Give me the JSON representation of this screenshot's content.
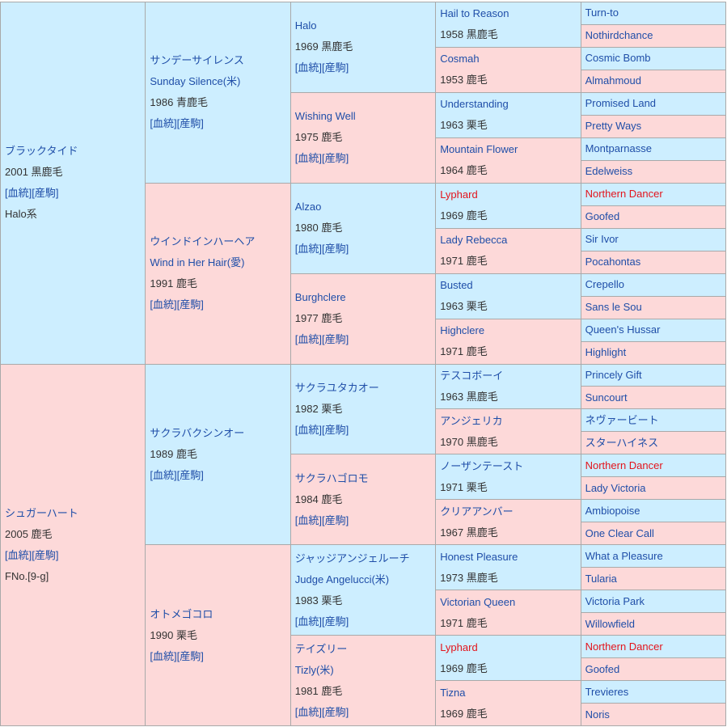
{
  "pedigree": {
    "generations": [
      [
        {
          "name": "ブラックタイド",
          "year": 2001,
          "coat": "黒鹿毛",
          "links": [
            "[血統]",
            "[産駒]"
          ],
          "note": "Halo系"
        },
        {
          "name": "シュガーハート",
          "year": 2005,
          "coat": "鹿毛",
          "links": [
            "[血統]",
            "[産駒]"
          ],
          "note": "FNo.[9-g]"
        }
      ],
      [
        {
          "name": "サンデーサイレンス",
          "name_en": "Sunday Silence(米)",
          "year": 1986,
          "coat": "青鹿毛",
          "links": [
            "[血統]",
            "[産駒]"
          ]
        },
        {
          "name": "ウインドインハーヘア",
          "name_en": "Wind in Her Hair(愛)",
          "year": 1991,
          "coat": "鹿毛",
          "links": [
            "[血統]",
            "[産駒]"
          ]
        },
        {
          "name": "サクラバクシンオー",
          "year": 1989,
          "coat": "鹿毛",
          "links": [
            "[血統]",
            "[産駒]"
          ]
        },
        {
          "name": "オトメゴコロ",
          "year": 1990,
          "coat": "栗毛",
          "links": [
            "[血統]",
            "[産駒]"
          ]
        }
      ],
      [
        {
          "name": "Halo",
          "year": 1969,
          "coat": "黒鹿毛",
          "links": [
            "[血統]",
            "[産駒]"
          ]
        },
        {
          "name": "Wishing Well",
          "year": 1975,
          "coat": "鹿毛",
          "links": [
            "[血統]",
            "[産駒]"
          ]
        },
        {
          "name": "Alzao",
          "year": 1980,
          "coat": "鹿毛",
          "links": [
            "[血統]",
            "[産駒]"
          ]
        },
        {
          "name": "Burghclere",
          "year": 1977,
          "coat": "鹿毛",
          "links": [
            "[血統]",
            "[産駒]"
          ]
        },
        {
          "name": "サクラユタカオー",
          "year": 1982,
          "coat": "栗毛",
          "links": [
            "[血統]",
            "[産駒]"
          ]
        },
        {
          "name": "サクラハゴロモ",
          "year": 1984,
          "coat": "鹿毛",
          "links": [
            "[血統]",
            "[産駒]"
          ]
        },
        {
          "name": "ジャッジアンジェルーチ",
          "name_en": "Judge Angelucci(米)",
          "year": 1983,
          "coat": "栗毛",
          "links": [
            "[血統]",
            "[産駒]"
          ]
        },
        {
          "name": "テイズリー",
          "name_en": "Tizly(米)",
          "year": 1981,
          "coat": "鹿毛",
          "links": [
            "[血統]",
            "[産駒]"
          ]
        }
      ],
      [
        {
          "name": "Hail to Reason",
          "year": 1958,
          "coat": "黒鹿毛"
        },
        {
          "name": "Cosmah",
          "year": 1953,
          "coat": "鹿毛"
        },
        {
          "name": "Understanding",
          "year": 1963,
          "coat": "栗毛"
        },
        {
          "name": "Mountain Flower",
          "year": 1964,
          "coat": "鹿毛"
        },
        {
          "name": "Lyphard",
          "year": 1969,
          "coat": "鹿毛",
          "highlight": true
        },
        {
          "name": "Lady Rebecca",
          "year": 1971,
          "coat": "鹿毛"
        },
        {
          "name": "Busted",
          "year": 1963,
          "coat": "栗毛"
        },
        {
          "name": "Highclere",
          "year": 1971,
          "coat": "鹿毛"
        },
        {
          "name": "テスコボーイ",
          "year": 1963,
          "coat": "黒鹿毛"
        },
        {
          "name": "アンジェリカ",
          "year": 1970,
          "coat": "黒鹿毛"
        },
        {
          "name": "ノーザンテースト",
          "year": 1971,
          "coat": "栗毛"
        },
        {
          "name": "クリアアンバー",
          "year": 1967,
          "coat": "黒鹿毛"
        },
        {
          "name": "Honest Pleasure",
          "year": 1973,
          "coat": "黒鹿毛"
        },
        {
          "name": "Victorian Queen",
          "year": 1971,
          "coat": "鹿毛"
        },
        {
          "name": "Lyphard",
          "year": 1969,
          "coat": "鹿毛",
          "highlight": true
        },
        {
          "name": "Tizna",
          "year": 1969,
          "coat": "鹿毛"
        }
      ],
      [
        {
          "name": "Turn-to"
        },
        {
          "name": "Nothirdchance"
        },
        {
          "name": "Cosmic Bomb"
        },
        {
          "name": "Almahmoud"
        },
        {
          "name": "Promised Land"
        },
        {
          "name": "Pretty Ways"
        },
        {
          "name": "Montparnasse"
        },
        {
          "name": "Edelweiss"
        },
        {
          "name": "Northern Dancer",
          "highlight": true
        },
        {
          "name": "Goofed"
        },
        {
          "name": "Sir Ivor"
        },
        {
          "name": "Pocahontas"
        },
        {
          "name": "Crepello"
        },
        {
          "name": "Sans le Sou"
        },
        {
          "name": "Queen's Hussar"
        },
        {
          "name": "Highlight"
        },
        {
          "name": "Princely Gift"
        },
        {
          "name": "Suncourt"
        },
        {
          "name": "ネヴァービート"
        },
        {
          "name": "スターハイネス"
        },
        {
          "name": "Northern Dancer",
          "highlight": true
        },
        {
          "name": "Lady Victoria"
        },
        {
          "name": "Ambiopoise"
        },
        {
          "name": "One Clear Call"
        },
        {
          "name": "What a Pleasure"
        },
        {
          "name": "Tularia"
        },
        {
          "name": "Victoria Park"
        },
        {
          "name": "Willowfield"
        },
        {
          "name": "Northern Dancer",
          "highlight": true
        },
        {
          "name": "Goofed"
        },
        {
          "name": "Trevieres"
        },
        {
          "name": "Noris"
        }
      ]
    ]
  }
}
